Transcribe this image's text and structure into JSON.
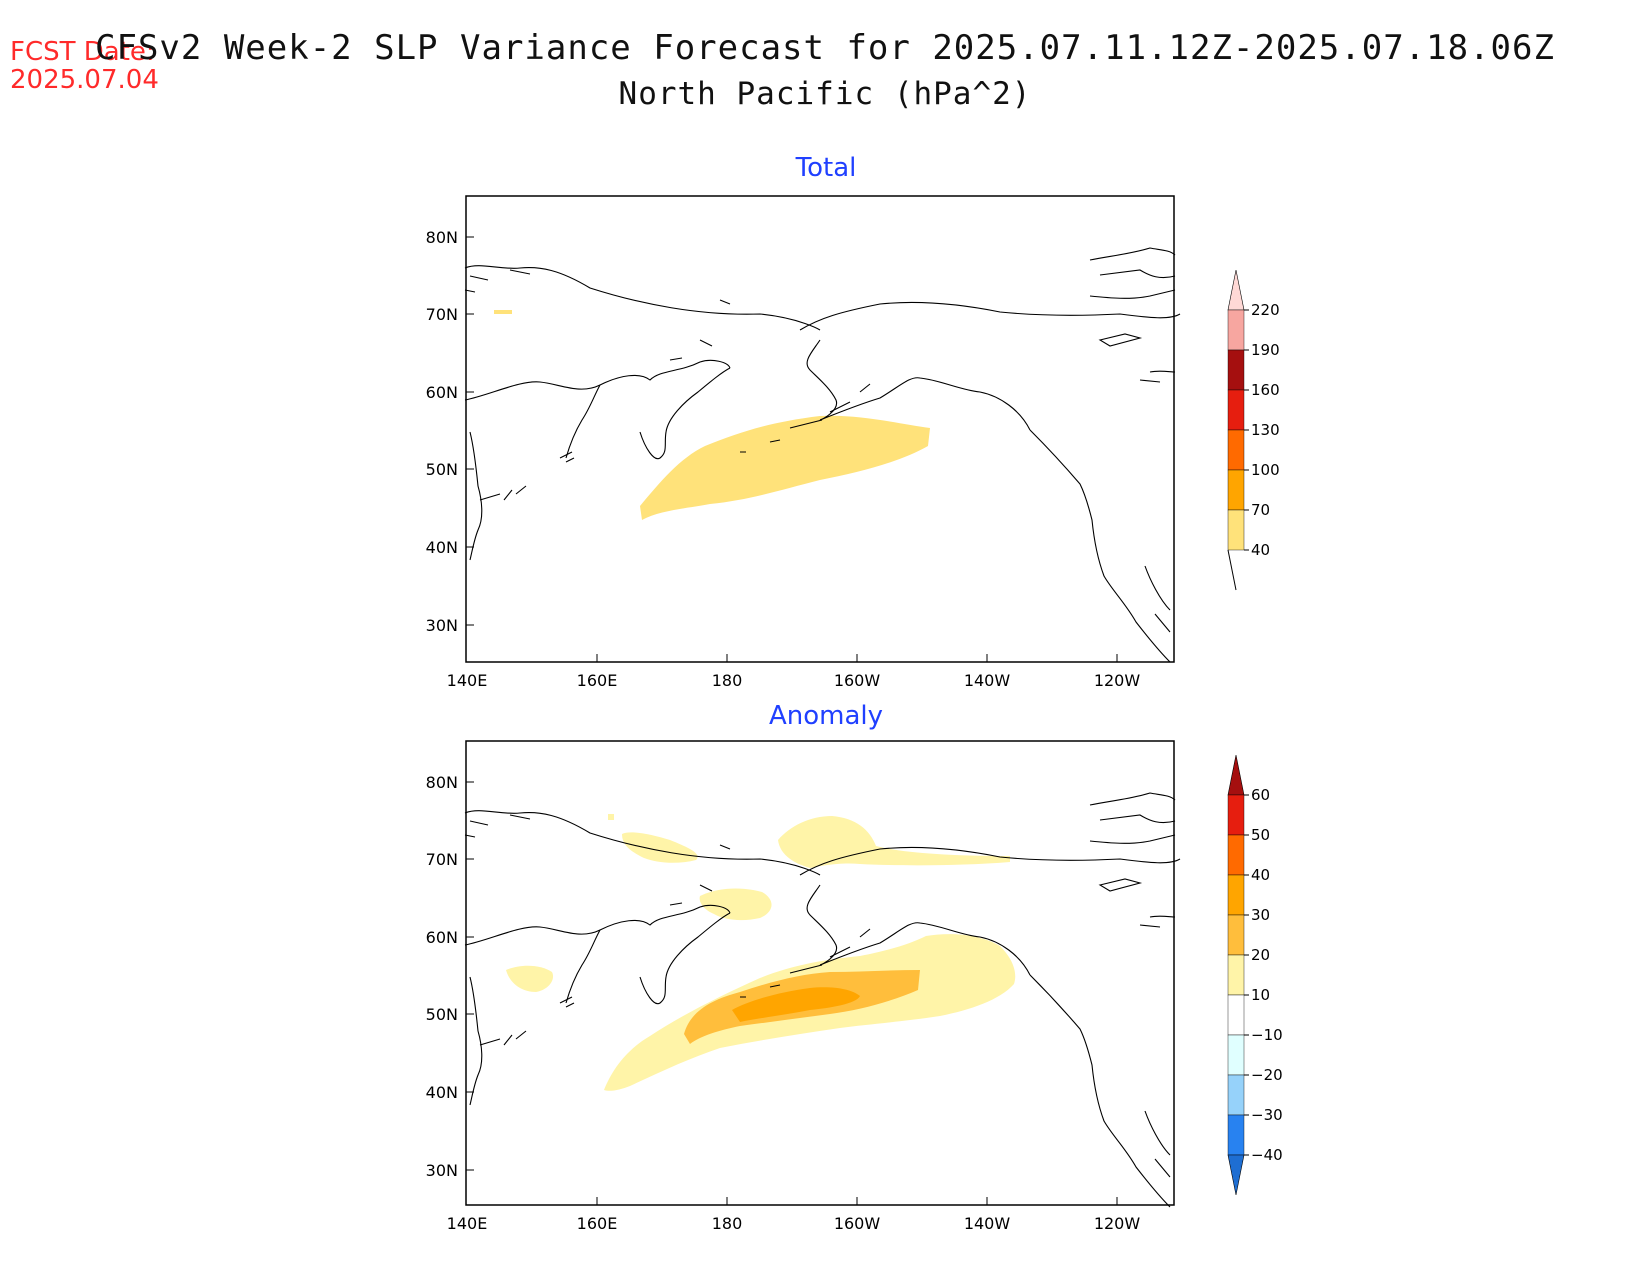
{
  "header": {
    "fcst_label": "FCST Date:",
    "fcst_date": "2025.07.04",
    "title": "CFSv2 Week-2 SLP Variance Forecast for 2025.07.11.12Z-2025.07.18.06Z",
    "subtitle": "North Pacific (hPa^2)"
  },
  "panels": [
    {
      "title": "Total",
      "lat_ticks": [
        "80N",
        "70N",
        "60N",
        "50N",
        "40N",
        "30N"
      ],
      "lon_ticks": [
        "140E",
        "160E",
        "180",
        "160W",
        "140W",
        "120W"
      ],
      "legend_labels": [
        "220",
        "190",
        "160",
        "130",
        "100",
        "70",
        "40"
      ],
      "legend_colors": [
        "#f7a6a0",
        "#a50f0f",
        "#e61e0f",
        "#ff6a00",
        "#ffa500",
        "#ffe27a"
      ],
      "legend_top_color": "#ffd9d6"
    },
    {
      "title": "Anomaly",
      "lat_ticks": [
        "80N",
        "70N",
        "60N",
        "50N",
        "40N",
        "30N"
      ],
      "lon_ticks": [
        "140E",
        "160E",
        "180",
        "160W",
        "140W",
        "120W"
      ],
      "legend_labels": [
        "60",
        "50",
        "40",
        "30",
        "20",
        "10",
        "−10",
        "−20",
        "−30",
        "−40"
      ],
      "legend_colors": [
        "#e61e0f",
        "#ff6a00",
        "#ffa500",
        "#ffbe3c",
        "#fff4a8",
        "#ffffff",
        "#e0ffff",
        "#96d2fa",
        "#2882f0"
      ],
      "legend_top_color": "#a50f0f",
      "legend_bottom_color": "#1e6ed2"
    }
  ]
}
